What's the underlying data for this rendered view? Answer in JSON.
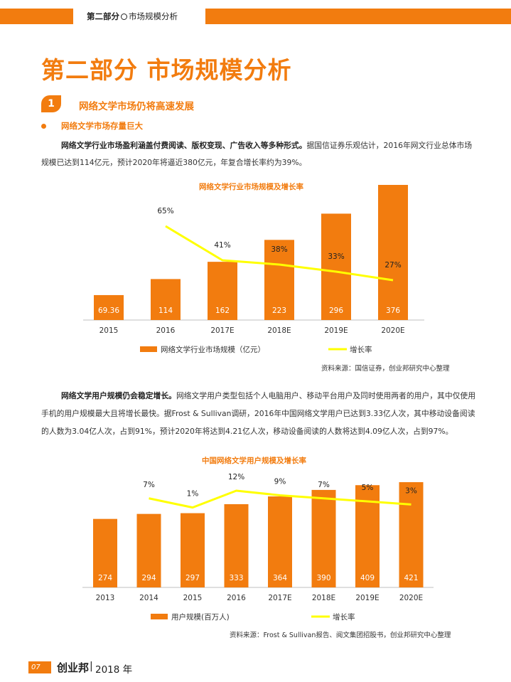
{
  "header": {
    "section_bold": "第二部分",
    "section_light": "市场规模分析"
  },
  "page_title": "第二部分 市场规模分析",
  "section": {
    "number": "1",
    "title": "网络文学市场仍将高速发展"
  },
  "bullet": "网络文学市场存量巨大",
  "para1": {
    "line1_bold": "网络文学行业市场盈利涵盖付费阅读、版权变现、广告收入等多种形式。",
    "line1_rest": "据国信证券乐观估计，2016年网文行业总体市场",
    "line2": "规模已达到114亿元，预计2020年将逼近380亿元，年复合增长率约为39%。"
  },
  "para2": {
    "line1_bold": "网络文学用户规模仍会稳定增长。",
    "line1_rest": "网络文学用户类型包括个人电脑用户、移动平台用户及同时使用两者的用户，其中仅使用",
    "line2": "手机的用户规模最大且将增长最快。据Frost & Sullivan调研，2016年中国网络文学用户已达到3.33亿人次，其中移动设备阅读",
    "line3": "的人数为3.04亿人次，占到91%，预计2020年将达到4.21亿人次，移动设备阅读的人数将达到4.09亿人次，占到97%。"
  },
  "chart_data": [
    {
      "type": "bar",
      "title": "网络文学行业市场规模及增长率",
      "categories": [
        "2015",
        "2016",
        "2017E",
        "2018E",
        "2019E",
        "2020E"
      ],
      "bar_labels": [
        "69.36",
        "114",
        "162",
        "223",
        "296",
        "376"
      ],
      "series": [
        {
          "name": "网络文学行业市场规模（亿元）",
          "type": "bar",
          "values": [
            69.36,
            114,
            162,
            223,
            296,
            376
          ],
          "color": "#f27c0f"
        },
        {
          "name": "增长率",
          "type": "line",
          "values": [
            null,
            65,
            41,
            38,
            33,
            27
          ],
          "labels": [
            "",
            "65%",
            "41%",
            "38%",
            "33%",
            "27%"
          ],
          "color": "#ffff00"
        }
      ],
      "source": "资料来源：国信证券，创业邦研究中心整理"
    },
    {
      "type": "bar",
      "title": "中国网络文学用户规模及增长率",
      "categories": [
        "2013",
        "2014",
        "2015",
        "2016",
        "2017E",
        "2018E",
        "2019E",
        "2020E"
      ],
      "bar_labels": [
        "274",
        "294",
        "297",
        "333",
        "364",
        "390",
        "409",
        "421"
      ],
      "series": [
        {
          "name": "用户规模(百万人)",
          "type": "bar",
          "values": [
            274,
            294,
            297,
            333,
            364,
            390,
            409,
            421
          ],
          "color": "#f27c0f"
        },
        {
          "name": "增长率",
          "type": "line",
          "values": [
            null,
            7,
            1,
            12,
            9,
            7,
            5,
            3
          ],
          "labels": [
            "",
            "7%",
            "1%",
            "12%",
            "9%",
            "7%",
            "5%",
            "3%"
          ],
          "color": "#ffff00"
        }
      ],
      "source": "资料来源：Frost & Sullivan报告、阅文集团招股书，创业邦研究中心整理"
    }
  ],
  "footer": {
    "page": "07",
    "logo": "创业邦",
    "year": "2018 年"
  }
}
